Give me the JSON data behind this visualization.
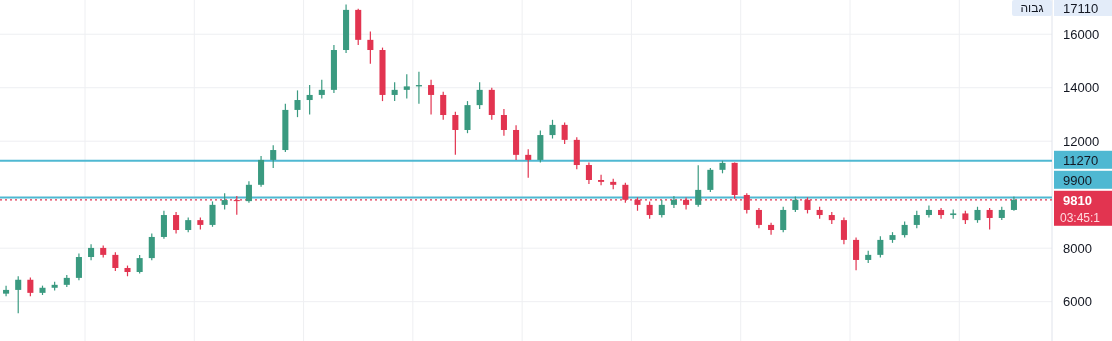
{
  "chart_data": {
    "type": "candlestick",
    "categories": [
      null,
      null,
      null,
      null,
      null,
      null,
      null,
      null,
      null,
      null,
      null,
      null,
      null,
      null,
      null,
      null,
      null,
      null,
      null,
      null,
      null,
      null,
      null,
      null,
      null,
      null,
      null,
      null,
      null,
      null,
      null,
      null,
      null,
      null,
      null,
      null,
      null,
      null,
      null,
      null,
      null,
      null,
      null,
      null,
      null,
      null,
      null,
      null,
      null,
      null,
      null,
      null,
      null,
      null,
      null,
      null,
      null,
      null,
      null,
      null,
      null,
      null,
      null,
      null,
      null,
      null,
      null,
      null,
      null,
      null,
      null,
      null,
      null,
      null,
      null,
      null,
      null,
      null,
      null,
      null,
      null,
      null,
      null,
      null
    ],
    "ohlc": [
      [
        6300,
        6600,
        6200,
        6440
      ],
      [
        6440,
        6950,
        5570,
        6820
      ],
      [
        6820,
        6900,
        6200,
        6330
      ],
      [
        6330,
        6600,
        6250,
        6520
      ],
      [
        6520,
        6750,
        6420,
        6630
      ],
      [
        6630,
        7000,
        6550,
        6890
      ],
      [
        6890,
        7800,
        6800,
        7670
      ],
      [
        7670,
        8150,
        7550,
        8010
      ],
      [
        8010,
        8100,
        7650,
        7750
      ],
      [
        7750,
        7850,
        7150,
        7260
      ],
      [
        7260,
        7350,
        6950,
        7110
      ],
      [
        7110,
        7750,
        7050,
        7630
      ],
      [
        7630,
        8550,
        7550,
        8420
      ],
      [
        8420,
        9400,
        8350,
        9240
      ],
      [
        9240,
        9350,
        8550,
        8680
      ],
      [
        8680,
        9150,
        8600,
        9050
      ],
      [
        9050,
        9150,
        8700,
        8870
      ],
      [
        8870,
        9750,
        8800,
        9620
      ],
      [
        9620,
        10050,
        9450,
        9800
      ],
      [
        9800,
        9950,
        9250,
        9760
      ],
      [
        9760,
        10500,
        9700,
        10370
      ],
      [
        10370,
        11450,
        10300,
        11300
      ],
      [
        11300,
        11850,
        11000,
        11670
      ],
      [
        11670,
        13400,
        11600,
        13170
      ],
      [
        13170,
        13900,
        12900,
        13540
      ],
      [
        13540,
        14100,
        13000,
        13730
      ],
      [
        13730,
        14300,
        13600,
        13920
      ],
      [
        13920,
        15600,
        13800,
        15410
      ],
      [
        15410,
        17110,
        15300,
        16910
      ],
      [
        16910,
        16950,
        15600,
        15790
      ],
      [
        15790,
        16100,
        14900,
        15410
      ],
      [
        15410,
        15500,
        13500,
        13730
      ],
      [
        13730,
        14200,
        13500,
        13920
      ],
      [
        13920,
        14500,
        13600,
        14050
      ],
      [
        14050,
        14600,
        13400,
        14100
      ],
      [
        14100,
        14300,
        13000,
        13730
      ],
      [
        13730,
        13850,
        12800,
        12980
      ],
      [
        12980,
        13100,
        11490,
        12420
      ],
      [
        12420,
        13500,
        12300,
        13350
      ],
      [
        13350,
        14200,
        13200,
        13920
      ],
      [
        13920,
        14000,
        12800,
        12980
      ],
      [
        12980,
        13200,
        12200,
        12420
      ],
      [
        12420,
        12600,
        11300,
        11490
      ],
      [
        11490,
        11700,
        10630,
        11300
      ],
      [
        11300,
        12400,
        11200,
        12230
      ],
      [
        12230,
        12800,
        12100,
        12610
      ],
      [
        12610,
        12700,
        11900,
        12050
      ],
      [
        12050,
        12150,
        10950,
        11110
      ],
      [
        11110,
        11200,
        10400,
        10550
      ],
      [
        10550,
        10750,
        10350,
        10480
      ],
      [
        10480,
        10600,
        10200,
        10370
      ],
      [
        10370,
        10450,
        9700,
        9810
      ],
      [
        9810,
        9900,
        9400,
        9620
      ],
      [
        9620,
        9750,
        9100,
        9240
      ],
      [
        9240,
        9800,
        9150,
        9620
      ],
      [
        9620,
        9950,
        9500,
        9810
      ],
      [
        9810,
        9900,
        9450,
        9620
      ],
      [
        9620,
        11100,
        9550,
        10180
      ],
      [
        10180,
        11000,
        10100,
        10930
      ],
      [
        10930,
        11270,
        10800,
        11190
      ],
      [
        11190,
        11200,
        9850,
        9990
      ],
      [
        9990,
        10050,
        9300,
        9430
      ],
      [
        9430,
        9500,
        8750,
        8870
      ],
      [
        8870,
        8950,
        8500,
        8680
      ],
      [
        8680,
        9550,
        8600,
        9430
      ],
      [
        9430,
        9930,
        9350,
        9810
      ],
      [
        9810,
        9900,
        9300,
        9430
      ],
      [
        9430,
        9550,
        9100,
        9240
      ],
      [
        9240,
        9350,
        8900,
        9050
      ],
      [
        9050,
        9150,
        8150,
        8310
      ],
      [
        8310,
        8400,
        7180,
        7560
      ],
      [
        7560,
        7900,
        7450,
        7750
      ],
      [
        7750,
        8450,
        7650,
        8310
      ],
      [
        8310,
        8600,
        8200,
        8490
      ],
      [
        8490,
        9000,
        8400,
        8870
      ],
      [
        8870,
        9400,
        8750,
        9240
      ],
      [
        9240,
        9600,
        9150,
        9430
      ],
      [
        9430,
        9500,
        9100,
        9240
      ],
      [
        9240,
        9450,
        9100,
        9300
      ],
      [
        9300,
        9400,
        8900,
        9050
      ],
      [
        9050,
        9550,
        8950,
        9430
      ],
      [
        9430,
        9500,
        8700,
        9130
      ],
      [
        9130,
        9550,
        9050,
        9430
      ],
      [
        9430,
        9930,
        9400,
        9810
      ]
    ],
    "colors": [
      "#3a9a80",
      "#3a9a80",
      "#e23450",
      "#3a9a80",
      "#3a9a80",
      "#3a9a80",
      "#3a9a80",
      "#3a9a80",
      "#e23450",
      "#e23450",
      "#e23450",
      "#3a9a80",
      "#3a9a80",
      "#3a9a80",
      "#e23450",
      "#3a9a80",
      "#e23450",
      "#3a9a80",
      "#3a9a80",
      "#e23450",
      "#3a9a80",
      "#3a9a80",
      "#3a9a80",
      "#3a9a80",
      "#3a9a80",
      "#3a9a80",
      "#3a9a80",
      "#3a9a80",
      "#3a9a80",
      "#e23450",
      "#e23450",
      "#e23450",
      "#3a9a80",
      "#3a9a80",
      "#3a9a80",
      "#e23450",
      "#e23450",
      "#e23450",
      "#3a9a80",
      "#3a9a80",
      "#e23450",
      "#e23450",
      "#e23450",
      "#e23450",
      "#3a9a80",
      "#3a9a80",
      "#e23450",
      "#e23450",
      "#e23450",
      "#e23450",
      "#e23450",
      "#e23450",
      "#e23450",
      "#e23450",
      "#3a9a80",
      "#3a9a80",
      "#e23450",
      "#3a9a80",
      "#3a9a80",
      "#3a9a80",
      "#e23450",
      "#e23450",
      "#e23450",
      "#e23450",
      "#3a9a80",
      "#3a9a80",
      "#e23450",
      "#e23450",
      "#e23450",
      "#e23450",
      "#e23450",
      "#3a9a80",
      "#3a9a80",
      "#3a9a80",
      "#3a9a80",
      "#3a9a80",
      "#3a9a80",
      "#e23450",
      "#3a9a80",
      "#e23450",
      "#3a9a80",
      "#e23450",
      "#3a9a80",
      "#3a9a80"
    ],
    "ylim": [
      4530,
      17280
    ],
    "yticks": [
      6000,
      8000,
      12000,
      14000,
      16000
    ],
    "tick_labels": "y",
    "grid": true,
    "ref_lines": [
      {
        "axis": "y",
        "value": 11270,
        "label": "11270",
        "color": "#4fb8d2",
        "line_style": "solid"
      },
      {
        "axis": "y",
        "value": 9900,
        "label": "9900",
        "color": "#4fb8d2",
        "line_style": "solid"
      },
      {
        "axis": "y",
        "value": 9810,
        "label": "9810",
        "color": "#e23450",
        "line_style": "dotted"
      }
    ],
    "annotations": [
      "גבוה",
      "17110",
      "03:45:1"
    ]
  }
}
